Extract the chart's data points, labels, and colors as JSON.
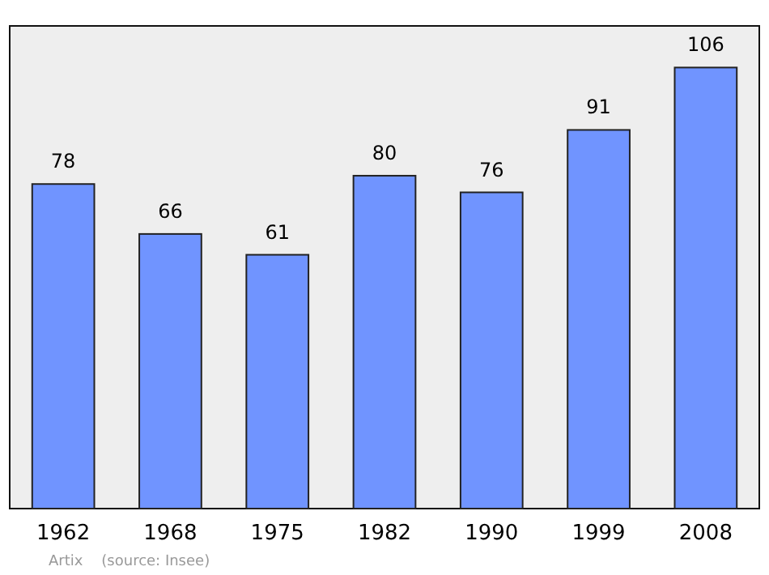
{
  "chart_data": {
    "type": "bar",
    "categories": [
      "1962",
      "1968",
      "1975",
      "1982",
      "1990",
      "1999",
      "2008"
    ],
    "values": [
      78,
      66,
      61,
      80,
      76,
      91,
      106
    ],
    "color": "#7094ff",
    "ylim": [
      0,
      116
    ],
    "data_labels": true,
    "annotations": [
      "Artix    (source: Insee)"
    ]
  }
}
